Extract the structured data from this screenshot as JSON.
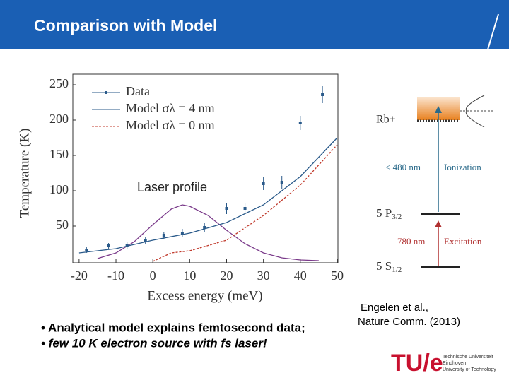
{
  "header": {
    "title": "Comparison with Model"
  },
  "chart_data": {
    "type": "line",
    "x_label": "Excess energy (meV)",
    "y_label": "Temperature (K)",
    "xlim": [
      -21.7,
      50.2
    ],
    "ylim": [
      -2,
      265
    ],
    "xticks": [
      -20,
      -10,
      0,
      10,
      20,
      30,
      40,
      50
    ],
    "yticks": [
      50,
      100,
      150,
      200,
      250
    ],
    "points": {
      "name": "Data",
      "color": "#2a5a8a",
      "x": [
        -18,
        -12,
        -7,
        -2,
        3,
        8,
        14,
        20,
        25,
        30,
        35,
        40,
        46
      ],
      "values": [
        16,
        22,
        23,
        30,
        37,
        40,
        48,
        75,
        75,
        110,
        112,
        196,
        236
      ],
      "errors": [
        4,
        4,
        5,
        5,
        5,
        6,
        6,
        8,
        8,
        9,
        9,
        10,
        12
      ]
    },
    "series": [
      {
        "name": "Model σλ = 4 nm",
        "color": "#2a5a8a",
        "x": [
          -20,
          -10,
          0,
          10,
          20,
          30,
          40,
          50
        ],
        "values": [
          12,
          18,
          30,
          40,
          55,
          80,
          120,
          175
        ]
      },
      {
        "name": "Model σλ = 0 nm",
        "color": "#c0392b",
        "x": [
          0,
          5,
          10,
          20,
          30,
          40,
          50
        ],
        "values": [
          0,
          12,
          15,
          30,
          65,
          108,
          165
        ]
      }
    ],
    "profile": {
      "label": "Laser profile",
      "color": "#7a3a8a",
      "x": [
        -15,
        -10,
        -5,
        0,
        5,
        8,
        10,
        15,
        20,
        25,
        30,
        35,
        40,
        45
      ],
      "values": [
        4,
        12,
        28,
        52,
        74,
        80,
        78,
        65,
        44,
        25,
        12,
        5,
        2,
        1
      ]
    }
  },
  "diagram": {
    "ion": "Rb+",
    "ion_wavelength": "< 480 nm",
    "ion_label": "Ionization",
    "p_state": {
      "base": "5 P",
      "sub": "3/2"
    },
    "exc_wavelength": "780 nm",
    "exc_label": "Excitation",
    "s_state": {
      "base": "5 S",
      "sub": "1/2"
    }
  },
  "citation": [
    "Engelen et al.,",
    "Nature Comm. (2013)"
  ],
  "bullets": [
    "• Analytical model explains femtosecond data;",
    "• few 10 K electron source with fs laser!"
  ],
  "logo": {
    "mark": "TU/e",
    "lines": [
      "Technische Universiteit",
      "Eindhoven",
      "University of Technology"
    ]
  }
}
